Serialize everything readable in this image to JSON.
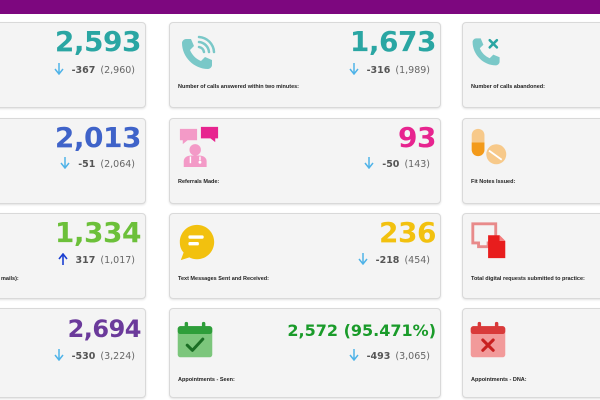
{
  "colors": {
    "topbar": "#7d077f",
    "teal": "#2aa6a3",
    "blue": "#3f63c9",
    "pink": "#e7248f",
    "green_bright": "#6cc03a",
    "yellow": "#f2c10f",
    "purple": "#6b3a9b",
    "green": "#1a9b2a",
    "arrow_down": "#4fb3e8",
    "arrow_up": "#1a3fd1"
  },
  "cards": {
    "r1c1": {
      "value": "2,593",
      "delta": "-367",
      "prev": "(2,960)",
      "direction": "down"
    },
    "r1c2": {
      "value": "1,673",
      "delta": "-316",
      "prev": "(1,989)",
      "direction": "down",
      "label": "Number of calls answered within two minutes:",
      "icon": "phone-ringing-icon"
    },
    "r1c3": {
      "label": "Number of calls abandoned:",
      "icon": "phone-x-icon"
    },
    "r2c1": {
      "value": "2,013",
      "delta": "-51",
      "prev": "(2,064)",
      "direction": "down"
    },
    "r2c2": {
      "value": "93",
      "delta": "-50",
      "prev": "(143)",
      "direction": "down",
      "label": "Referrals Made:",
      "icon": "doctor-chat-icon"
    },
    "r2c3": {
      "label": "Fit Notes Issued:",
      "icon": "pills-icon"
    },
    "r3c1": {
      "value": "1,334",
      "delta": "317",
      "prev": "(1,017)",
      "direction": "up",
      "label": "mails):"
    },
    "r3c2": {
      "value": "236",
      "delta": "-218",
      "prev": "(454)",
      "direction": "down",
      "label": "Text Messages Sent and Received:",
      "icon": "chat-bubble-icon"
    },
    "r3c3": {
      "label": "Total digital requests submitted to practice:",
      "icon": "digital-request-icon"
    },
    "r4c1": {
      "value": "2,694",
      "delta": "-530",
      "prev": "(3,224)",
      "direction": "down"
    },
    "r4c2": {
      "value": "2,572 (95.471%)",
      "delta": "-493",
      "prev": "(3,065)",
      "direction": "down",
      "label": "Appointments - Seen:",
      "icon": "calendar-check-icon"
    },
    "r4c3": {
      "label": "Appointments - DNA:",
      "icon": "calendar-x-icon"
    }
  }
}
